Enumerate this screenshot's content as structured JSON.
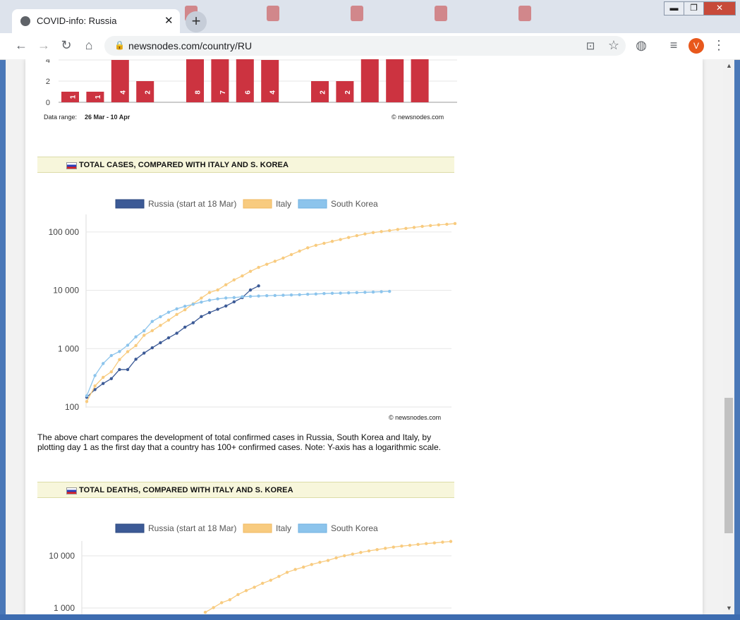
{
  "browser": {
    "tab_title": "COVID-info: Russia",
    "tab_close": "✕",
    "new_tab": "+",
    "url": "newsnodes.com/country/RU",
    "avatar_letter": "V",
    "window_buttons": {
      "minimize": "▬",
      "maximize": "❐",
      "close": "✕"
    },
    "nav": {
      "back": "←",
      "forward": "→",
      "reload": "↻",
      "home": "⌂",
      "star": "☆",
      "menu": "⋮",
      "translate": "⊡",
      "globe": "◍",
      "media": "≡"
    }
  },
  "bar_chart": {
    "chart_data": {
      "type": "bar",
      "visible_ytick_labels": [
        "4",
        "2",
        "0"
      ],
      "bar_labels": [
        "1",
        "1",
        "4",
        "2",
        "",
        "8",
        "7",
        "6",
        "4",
        "",
        "2",
        "2",
        "",
        "",
        ""
      ],
      "color": "#cc3340"
    },
    "range_label": "Data range:",
    "range_value": "26 Mar - 10 Apr",
    "credit": "© newsnodes.com"
  },
  "cases_section": {
    "header": "TOTAL CASES, COMPARED WITH ITALY AND S. KOREA",
    "legend": [
      "Russia (start at 18 Mar)",
      "Italy",
      "South Korea"
    ],
    "credit": "© newsnodes.com",
    "chart_data": {
      "type": "line",
      "yscale": "log",
      "ylim": [
        100,
        150000
      ],
      "yticks": [
        "100 000",
        "10 000",
        "1 000",
        "100"
      ],
      "series": [
        {
          "name": "Russia (start at 18 Mar)",
          "color": "#3c5a96",
          "values": [
            147,
            199,
            253,
            306,
            438,
            438,
            658,
            840,
            1036,
            1264,
            1534,
            1836,
            2337,
            2777,
            3548,
            4149,
            4731,
            5389,
            6343,
            7497,
            10131,
            11917
          ]
        },
        {
          "name": "Italy",
          "color": "#f8cb7f",
          "values": [
            124,
            229,
            322,
            400,
            650,
            888,
            1128,
            1694,
            2036,
            2502,
            3089,
            3858,
            4636,
            5883,
            7375,
            9172,
            10149,
            12462,
            15113,
            17660,
            21157,
            24747,
            27980,
            31506,
            35713,
            41035,
            47021,
            53578,
            59138,
            63927,
            69176,
            74386,
            80589,
            86498,
            92472,
            97689,
            101739,
            105792,
            110574,
            115242,
            119827,
            124632,
            128948,
            132547,
            135586,
            139422
          ]
        },
        {
          "name": "South Korea",
          "color": "#8cc4ec",
          "values": [
            156,
            346,
            556,
            763,
            893,
            1146,
            1595,
            2022,
            2931,
            3526,
            4212,
            4812,
            5328,
            5766,
            6284,
            6767,
            7134,
            7382,
            7513,
            7755,
            7869,
            7979,
            8086,
            8162,
            8236,
            8320,
            8413,
            8565,
            8652,
            8799,
            8897,
            8961,
            9037,
            9137,
            9241,
            9332,
            9478,
            9583
          ]
        }
      ]
    }
  },
  "description": "The above chart compares the development of total confirmed cases in Russia, South Korea and Italy, by plotting day 1 as the first day that a country has 100+ confirmed cases. Note: Y-axis has a logarithmic scale.",
  "deaths_section": {
    "header": "TOTAL DEATHS, COMPARED WITH ITALY AND S. KOREA",
    "legend": [
      "Russia (start at 18 Mar)",
      "Italy",
      "South Korea"
    ],
    "chart_data": {
      "type": "line",
      "yscale": "log",
      "yticks": [
        "10 000",
        "1 000"
      ],
      "series": [
        {
          "name": "Italy",
          "color": "#f8cb7f",
          "note": "partially visible",
          "values": [
            827,
            1016,
            1266,
            1441,
            1809,
            2158,
            2503,
            2978,
            3405,
            4032,
            4825,
            5476,
            6077,
            6820,
            7503,
            8165,
            9134,
            10023,
            10779,
            11591,
            12428,
            13155,
            13915,
            14681,
            15362,
            15887,
            16523,
            17127,
            17669,
            18279,
            18849
          ]
        }
      ]
    }
  }
}
